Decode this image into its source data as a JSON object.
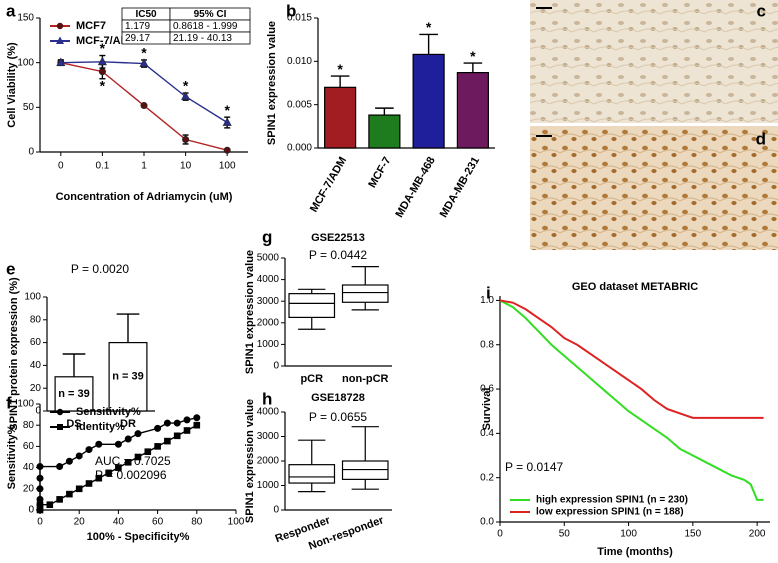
{
  "chart_data": [
    {
      "panel": "a",
      "type": "line",
      "ylabel": "Cell Viability (%)",
      "xlabel": "Concentration of Adriamycin (uM)",
      "categories": [
        "0",
        "0.1",
        "1",
        "10",
        "100"
      ],
      "ylim": [
        0,
        150
      ],
      "yticks": [
        0,
        50,
        100,
        150
      ],
      "legend": "upper left",
      "series": [
        {
          "name": "MCF7",
          "color": "#b22222",
          "marker": "circle",
          "values": [
            100,
            90,
            52,
            14,
            2
          ],
          "errors": [
            3,
            8,
            1,
            5,
            1
          ]
        },
        {
          "name": "MCF-7/ADM",
          "color": "#2b2f8f",
          "marker": "triangle",
          "values": [
            100,
            101,
            99,
            62,
            33
          ],
          "errors": [
            3,
            7,
            4,
            4,
            6
          ]
        }
      ],
      "significance": [
        null,
        "*",
        "*",
        "*",
        "*"
      ],
      "significance_low": [
        null,
        "*",
        null,
        null,
        null
      ],
      "table": {
        "header": [
          "IC50",
          "95% CI"
        ],
        "rows": [
          [
            "1.179",
            "0.8618 - 1.999"
          ],
          [
            "29.17",
            "21.19 - 40.13"
          ]
        ]
      }
    },
    {
      "panel": "b",
      "type": "bar",
      "ylabel": "SPIN1 expression value",
      "categories": [
        "MCF-7/ADM",
        "MCF-7",
        "MDA-MB-468",
        "MDA-MB-231"
      ],
      "values": [
        0.007,
        0.0038,
        0.0108,
        0.0087
      ],
      "errors": [
        0.0013,
        0.0008,
        0.0023,
        0.0011
      ],
      "colors": [
        "#a11d21",
        "#1e7b1e",
        "#1f1f9c",
        "#6e1a5e"
      ],
      "ylim": [
        0,
        0.015
      ],
      "yticks": [
        {
          "value": 0,
          "label": "0.000"
        },
        {
          "value": 0.005,
          "label": "0.005"
        },
        {
          "value": 0.01,
          "label": "0.010"
        },
        {
          "value": 0.015,
          "label": "0.015"
        }
      ],
      "significance": [
        "*",
        null,
        "*",
        "*"
      ],
      "rotate_labels": true
    },
    {
      "panel": "c",
      "type": "image"
    },
    {
      "panel": "d",
      "type": "image"
    },
    {
      "panel": "e",
      "type": "bar",
      "ylabel": "SPIN1 protein expression (%)",
      "annotation": "P = 0.0020",
      "categories": [
        "DS",
        "DR"
      ],
      "values": [
        30,
        60
      ],
      "errors": [
        20,
        25
      ],
      "colors": [
        "#ffffff",
        "#ffffff"
      ],
      "bar_labels": [
        "n = 39",
        "n = 39"
      ],
      "ylim": [
        0,
        100
      ],
      "yticks": [
        0,
        20,
        40,
        60,
        80,
        100
      ]
    },
    {
      "panel": "g",
      "type": "box",
      "title": "GSE22513",
      "annotation": "P = 0.0442",
      "ylabel": "SPIN1 expression value",
      "categories": [
        "pCR",
        "non-pCR"
      ],
      "boxes": [
        {
          "min": 1700,
          "q1": 2250,
          "median": 2900,
          "q3": 3350,
          "max": 3550
        },
        {
          "min": 2600,
          "q1": 2950,
          "median": 3400,
          "q3": 3750,
          "max": 4600
        }
      ],
      "ylim": [
        0,
        5000
      ],
      "yticks": [
        0,
        1000,
        2000,
        3000,
        4000,
        5000
      ]
    },
    {
      "panel": "f",
      "type": "line",
      "xlabel": "100% - Specificity%",
      "ylabel": "Sensitivity%",
      "xlim": [
        0,
        100
      ],
      "xticks": [
        0,
        20,
        40,
        60,
        80,
        100
      ],
      "ylim": [
        0,
        100
      ],
      "yticks": [
        0,
        20,
        40,
        60,
        80,
        100
      ],
      "legend": "upper left",
      "annotations": [
        "AUC = 0.7025",
        "P = 0.002096"
      ],
      "series": [
        {
          "name": "Sensitivity%",
          "color": "#000000",
          "marker": "circle",
          "x": [
            0,
            0,
            0,
            0,
            0,
            0,
            10,
            15,
            20,
            25,
            30,
            40,
            45,
            50,
            60,
            65,
            70,
            75,
            80
          ],
          "values": [
            0,
            5,
            10,
            20,
            30,
            41,
            41,
            46,
            51,
            57,
            62,
            62,
            67,
            72,
            77,
            82,
            82,
            85,
            87
          ]
        },
        {
          "name": "Identity%",
          "color": "#000000",
          "marker": "square",
          "x": [
            0,
            0,
            5,
            10,
            15,
            20,
            25,
            30,
            35,
            40,
            45,
            50,
            55,
            60,
            65,
            70,
            75,
            80
          ],
          "values": [
            0,
            5,
            5,
            10,
            15,
            20,
            25,
            30,
            35,
            40,
            45,
            50,
            55,
            60,
            65,
            70,
            75,
            80
          ]
        }
      ]
    },
    {
      "panel": "h",
      "type": "box",
      "title": "GSE18728",
      "annotation": "P = 0.0655",
      "ylabel": "SPIN1 expression value",
      "categories": [
        "Responder",
        "Non-responder"
      ],
      "boxes": [
        {
          "min": 750,
          "q1": 1100,
          "median": 1350,
          "q3": 1850,
          "max": 2850
        },
        {
          "min": 850,
          "q1": 1250,
          "median": 1650,
          "q3": 2000,
          "max": 3400
        }
      ],
      "ylim": [
        0,
        4000
      ],
      "yticks": [
        0,
        1000,
        2000,
        3000,
        4000
      ],
      "rotate_labels": true
    },
    {
      "panel": "i",
      "type": "line",
      "title": "GEO dataset METABRIC",
      "xlabel": "Time (months)",
      "ylabel": "Survival",
      "annotation": "P = 0.0147",
      "xlim": [
        0,
        210
      ],
      "xticks": [
        0,
        50,
        100,
        150,
        200
      ],
      "ylim": [
        0,
        1.02
      ],
      "yticks": [
        {
          "value": 0,
          "label": "0.0"
        },
        {
          "value": 0.2,
          "label": "0.2"
        },
        {
          "value": 0.4,
          "label": "0.4"
        },
        {
          "value": 0.6,
          "label": "0.6"
        },
        {
          "value": 0.8,
          "label": "0.8"
        },
        {
          "value": 1,
          "label": "1.0"
        }
      ],
      "legend": "lower left",
      "series": [
        {
          "name": "high expression SPIN1 (n = 230)",
          "color": "#33dd22",
          "x": [
            0,
            10,
            20,
            30,
            40,
            50,
            60,
            70,
            80,
            90,
            100,
            110,
            120,
            130,
            140,
            150,
            160,
            170,
            180,
            190,
            195,
            200,
            205
          ],
          "values": [
            1,
            0.97,
            0.92,
            0.86,
            0.8,
            0.75,
            0.7,
            0.65,
            0.6,
            0.55,
            0.5,
            0.46,
            0.42,
            0.38,
            0.33,
            0.3,
            0.27,
            0.24,
            0.21,
            0.19,
            0.17,
            0.1,
            0.1
          ]
        },
        {
          "name": "low expression SPIN1 (n = 188)",
          "color": "#dd2222",
          "x": [
            0,
            10,
            20,
            30,
            40,
            50,
            60,
            70,
            80,
            90,
            100,
            110,
            120,
            130,
            140,
            150,
            155,
            160,
            180,
            200,
            205
          ],
          "values": [
            1,
            0.99,
            0.96,
            0.92,
            0.88,
            0.83,
            0.8,
            0.76,
            0.72,
            0.68,
            0.64,
            0.6,
            0.55,
            0.51,
            0.49,
            0.47,
            0.47,
            0.47,
            0.47,
            0.47,
            0.47
          ]
        }
      ]
    }
  ]
}
